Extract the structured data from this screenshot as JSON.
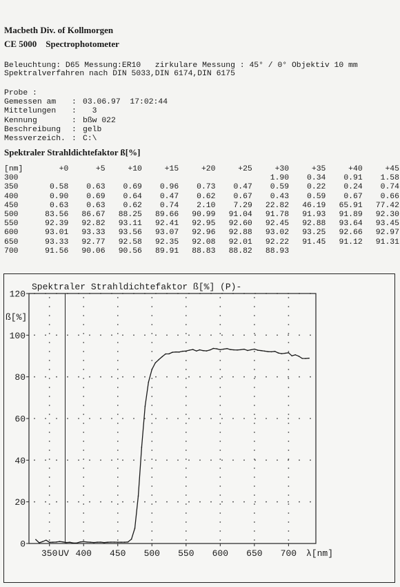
{
  "header": {
    "company": "Macbeth  Div. of  Kollmorgen",
    "model": "CE 5000    Spectrophotometer"
  },
  "settings": {
    "lighting": "Beleuchtung: D65 Messung:ER10   zirkulare Messung : 45° / 0° Objektiv 10 mm",
    "method": "Spektralverfahren nach DIN 5033,DIN 6174,DIN 6175"
  },
  "probe": {
    "heading": "Probe :",
    "rows": [
      {
        "label": "Gemessen am",
        "value": "03.06.97  17:02:44"
      },
      {
        "label": "Mittelungen",
        "value": "  3"
      },
      {
        "label": "Kennung",
        "value": "bßw 022"
      },
      {
        "label": "Beschreibung",
        "value": "gelb"
      },
      {
        "label": "Messverzeich.",
        "value": "C:\\"
      }
    ]
  },
  "table": {
    "title": "Spektraler Strahldichtefaktor ß[%]",
    "unit_label": "[nm]",
    "offsets": [
      "+0",
      "+5",
      "+10",
      "+15",
      "+20",
      "+25",
      "+30",
      "+35",
      "+40",
      "+45"
    ],
    "rows": [
      {
        "nm": "300",
        "values": [
          "",
          "",
          "",
          "",
          "",
          "",
          "1.90",
          "0.34",
          "0.91",
          "1.58"
        ]
      },
      {
        "nm": "350",
        "values": [
          "0.58",
          "0.63",
          "0.69",
          "0.96",
          "0.73",
          "0.47",
          "0.59",
          "0.22",
          "0.24",
          "0.74"
        ]
      },
      {
        "nm": "400",
        "values": [
          "0.90",
          "0.69",
          "0.64",
          "0.47",
          "0.62",
          "0.67",
          "0.43",
          "0.59",
          "0.67",
          "0.66"
        ]
      },
      {
        "nm": "450",
        "values": [
          "0.63",
          "0.63",
          "0.62",
          "0.74",
          "2.10",
          "7.29",
          "22.82",
          "46.19",
          "65.91",
          "77.42"
        ]
      },
      {
        "nm": "500",
        "values": [
          "83.56",
          "86.67",
          "88.25",
          "89.66",
          "90.99",
          "91.04",
          "91.78",
          "91.93",
          "91.89",
          "92.30"
        ]
      },
      {
        "nm": "550",
        "values": [
          "92.39",
          "92.82",
          "93.11",
          "92.41",
          "92.95",
          "92.60",
          "92.45",
          "92.88",
          "93.64",
          "93.45"
        ]
      },
      {
        "nm": "600",
        "values": [
          "93.01",
          "93.33",
          "93.56",
          "93.07",
          "92.96",
          "92.88",
          "93.02",
          "93.25",
          "92.66",
          "92.97"
        ]
      },
      {
        "nm": "650",
        "values": [
          "93.33",
          "92.77",
          "92.58",
          "92.35",
          "92.08",
          "92.01",
          "92.22",
          "91.45",
          "91.12",
          "91.31"
        ]
      },
      {
        "nm": "700",
        "values": [
          "91.56",
          "90.06",
          "90.56",
          "89.91",
          "88.83",
          "88.82",
          "88.93",
          "",
          "",
          ""
        ]
      }
    ]
  },
  "chart_data": {
    "type": "line",
    "title": "Spektraler Strahldichtefaktor ß[%]   (P)-",
    "ylabel": "ß[%]",
    "xlabel": "λ[nm]",
    "uv_label": "UV",
    "xlim": [
      320,
      740
    ],
    "ylim": [
      0,
      120
    ],
    "x_ticks": [
      350,
      400,
      450,
      500,
      550,
      600,
      650,
      700
    ],
    "y_ticks": [
      0,
      20,
      40,
      60,
      80,
      100,
      120
    ],
    "uv_marker_x": 373,
    "grid": true,
    "x_start": 330,
    "x_step": 5,
    "y_values": [
      1.9,
      0.34,
      0.91,
      1.58,
      0.58,
      0.63,
      0.69,
      0.96,
      0.73,
      0.47,
      0.59,
      0.22,
      0.24,
      0.74,
      0.9,
      0.69,
      0.64,
      0.47,
      0.62,
      0.67,
      0.43,
      0.59,
      0.67,
      0.66,
      0.63,
      0.63,
      0.62,
      0.74,
      2.1,
      7.29,
      22.82,
      46.19,
      65.91,
      77.42,
      83.56,
      86.67,
      88.25,
      89.66,
      90.99,
      91.04,
      91.78,
      91.93,
      91.89,
      92.3,
      92.39,
      92.82,
      93.11,
      92.41,
      92.95,
      92.6,
      92.45,
      92.88,
      93.64,
      93.45,
      93.01,
      93.33,
      93.56,
      93.07,
      92.96,
      92.88,
      93.02,
      93.25,
      92.66,
      92.97,
      93.33,
      92.77,
      92.58,
      92.35,
      92.08,
      92.01,
      92.22,
      91.45,
      91.12,
      91.31,
      91.56,
      90.06,
      90.56,
      89.91,
      88.83,
      88.82,
      88.93
    ],
    "colors": {
      "line": "#1a1a1a",
      "grid": "#444444"
    }
  }
}
